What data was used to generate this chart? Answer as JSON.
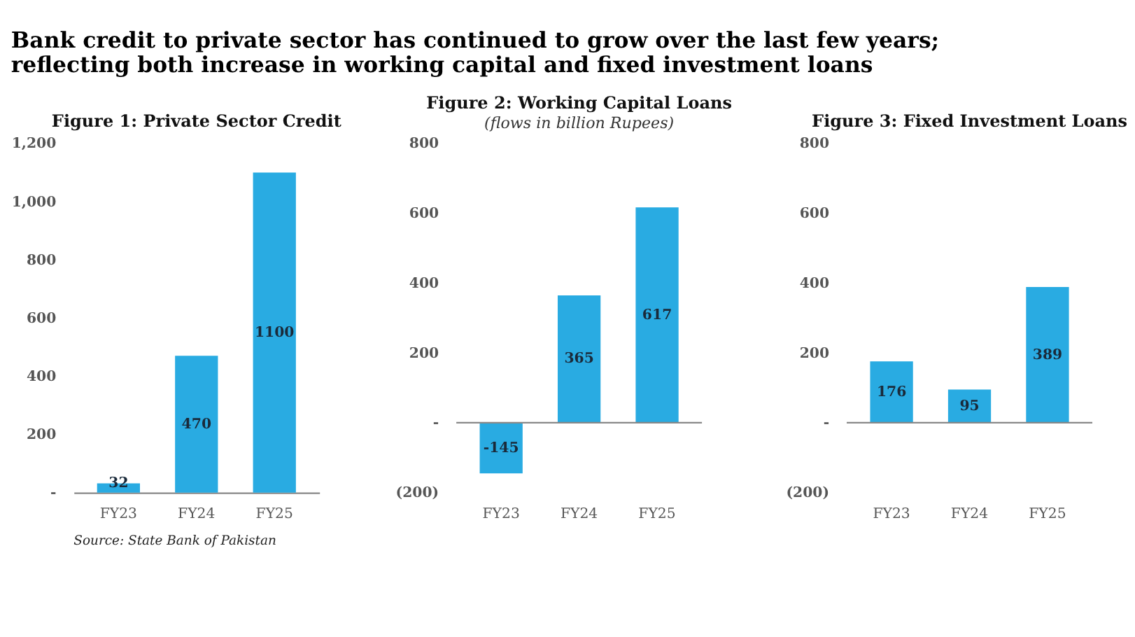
{
  "chart_data": [
    {
      "type": "other",
      "title": "Bank credit to private sector has continued to grow over the last few years; reflecting both increase in working capital and fixed investment loans",
      "annotations": [
        "Source: State Bank of Pakistan"
      ]
    },
    {
      "type": "bar",
      "title": "Figure 1: Private Sector Credit",
      "categories": [
        "FY23",
        "FY24",
        "FY25"
      ],
      "values": [
        32,
        470,
        1100
      ],
      "color": "#29abe2",
      "data_labels": true,
      "ylim": [
        0,
        1200
      ],
      "yticks": [
        {
          "value": 0,
          "label": "-"
        },
        200,
        400,
        600,
        800,
        {
          "value": 1000,
          "label": "1,000"
        },
        {
          "value": 1200,
          "label": "1,200"
        }
      ],
      "grid": false
    },
    {
      "type": "bar",
      "title": "Figure 2: Working Capital Loans",
      "subtitle": "(flows in billion Rupees)",
      "categories": [
        "FY23",
        "FY24",
        "FY25"
      ],
      "values": [
        -145,
        365,
        617
      ],
      "color": "#29abe2",
      "data_labels": true,
      "ylim": [
        -200,
        800
      ],
      "yticks": [
        {
          "value": -200,
          "label": "(200)"
        },
        {
          "value": 0,
          "label": "-"
        },
        200,
        400,
        600,
        800
      ],
      "ref_lines": [
        {
          "axis": "y",
          "value": 0,
          "color": "#888888"
        }
      ],
      "grid": false
    },
    {
      "type": "bar",
      "title": "Figure 3: Fixed Investment Loans",
      "categories": [
        "FY23",
        "FY24",
        "FY25"
      ],
      "values": [
        176,
        95,
        389
      ],
      "color": "#29abe2",
      "data_labels": true,
      "ylim": [
        -200,
        800
      ],
      "yticks": [
        {
          "value": -200,
          "label": "(200)"
        },
        {
          "value": 0,
          "label": "-"
        },
        200,
        400,
        600,
        800
      ],
      "ref_lines": [
        {
          "axis": "y",
          "value": 0,
          "color": "#888888"
        }
      ],
      "grid": false
    }
  ]
}
